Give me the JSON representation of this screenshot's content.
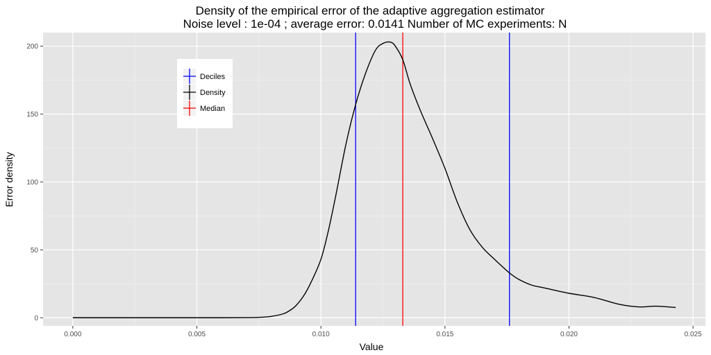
{
  "chart_data": {
    "type": "line",
    "title": "Density of the empirical error of the adaptive aggregation estimator",
    "subtitle": "Noise level : 1e-04 ; average error:  0.0141 Number of MC experiments:  N",
    "xlabel": "Value",
    "ylabel": "Error density",
    "xlim": [
      -0.0012,
      0.0255
    ],
    "ylim": [
      -6,
      210
    ],
    "x_ticks": [
      0.0,
      0.005,
      0.01,
      0.015,
      0.02,
      0.025
    ],
    "x_tick_labels": [
      "0.000",
      "0.005",
      "0.010",
      "0.015",
      "0.020",
      "0.025"
    ],
    "y_ticks": [
      0,
      50,
      100,
      150,
      200
    ],
    "y_tick_labels": [
      "0",
      "50",
      "100",
      "150",
      "200"
    ],
    "grid": true,
    "legend_position": "top-left",
    "legend": [
      {
        "name": "Deciles",
        "color": "#0000ff"
      },
      {
        "name": "Density",
        "color": "#000000"
      },
      {
        "name": "Median",
        "color": "#ff0000"
      }
    ],
    "series": [
      {
        "name": "Density",
        "color": "#000000",
        "x": [
          0.0,
          0.002,
          0.004,
          0.006,
          0.007,
          0.0075,
          0.008,
          0.0085,
          0.0088,
          0.009,
          0.0093,
          0.0096,
          0.01,
          0.0103,
          0.0106,
          0.011,
          0.0114,
          0.0118,
          0.0122,
          0.0125,
          0.0128,
          0.013,
          0.0133,
          0.0136,
          0.014,
          0.0145,
          0.015,
          0.0155,
          0.016,
          0.0165,
          0.017,
          0.0176,
          0.018,
          0.0185,
          0.019,
          0.02,
          0.021,
          0.022,
          0.0228,
          0.0235,
          0.0243
        ],
        "y": [
          0,
          0,
          0,
          0,
          0.1,
          0.3,
          1,
          3,
          6,
          9,
          16,
          26,
          43,
          64,
          90,
          127,
          157,
          180,
          197,
          202,
          203,
          200,
          190,
          172,
          153,
          132,
          110,
          85,
          65,
          52,
          43,
          33,
          28,
          24,
          22,
          18,
          15,
          10,
          8,
          8.5,
          7.5
        ]
      }
    ],
    "vlines": [
      {
        "name": "Deciles",
        "x": 0.0114,
        "color": "#0000ff"
      },
      {
        "name": "Median",
        "x": 0.0133,
        "color": "#ff0000"
      },
      {
        "name": "Deciles",
        "x": 0.0176,
        "color": "#0000ff"
      }
    ]
  }
}
